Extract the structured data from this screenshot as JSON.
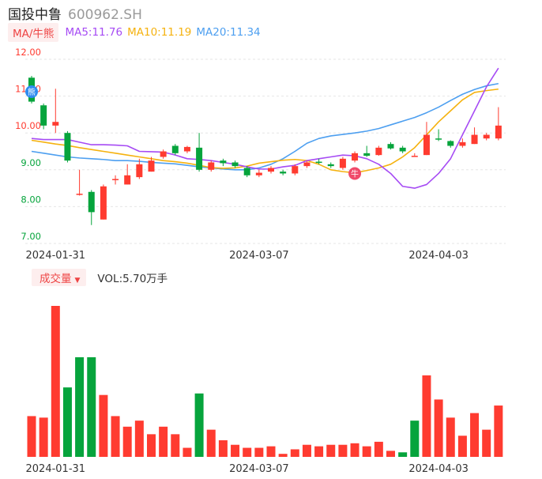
{
  "header": {
    "name": "国投中鲁",
    "code": "600962.SH"
  },
  "legend": {
    "ma_tag": "MA/牛熊",
    "ma5": "MA5:11.76",
    "ma10": "MA10:11.19",
    "ma20": "MA20:11.34"
  },
  "volume_legend": {
    "tag": "成交量",
    "caret": "▼",
    "value": "VOL:5.70万手"
  },
  "colors": {
    "up": "#ff3b30",
    "down": "#06a43c",
    "ma5": "#a64bf4",
    "ma10": "#f5b20f",
    "ma20": "#4d9ff0"
  },
  "markers": [
    {
      "text": "熊",
      "color": "#2f8cf0",
      "index": 0
    },
    {
      "text": "牛",
      "color": "#f04a6a",
      "index": 27
    }
  ],
  "chart_data": [
    {
      "type": "candlestick",
      "ylim": [
        7.0,
        12.0
      ],
      "y_ticks": [
        "7.00",
        "8.00",
        "9.00",
        "10.00",
        "11.00",
        "12.00"
      ],
      "x_tick_labels": [
        {
          "index": 2,
          "label": "2024-01-31"
        },
        {
          "index": 19,
          "label": "2024-03-07"
        },
        {
          "index": 34,
          "label": "2024-04-03"
        }
      ],
      "candles": [
        {
          "open": 11.5,
          "close": 10.85,
          "high": 11.55,
          "low": 10.8
        },
        {
          "open": 10.75,
          "close": 10.2,
          "high": 10.8,
          "low": 10.1
        },
        {
          "open": 10.2,
          "close": 10.3,
          "high": 11.2,
          "low": 10.0
        },
        {
          "open": 10.0,
          "close": 9.25,
          "high": 10.05,
          "low": 9.2
        },
        {
          "open": 8.35,
          "close": 8.35,
          "high": 9.0,
          "low": 8.3
        },
        {
          "open": 8.4,
          "close": 7.85,
          "high": 8.45,
          "low": 7.5
        },
        {
          "open": 7.65,
          "close": 8.55,
          "high": 8.6,
          "low": 7.65
        },
        {
          "open": 8.75,
          "close": 8.75,
          "high": 8.85,
          "low": 8.6
        },
        {
          "open": 8.6,
          "close": 8.85,
          "high": 9.15,
          "low": 8.6
        },
        {
          "open": 8.8,
          "close": 9.15,
          "high": 9.3,
          "low": 8.75
        },
        {
          "open": 8.95,
          "close": 9.25,
          "high": 9.35,
          "low": 8.95
        },
        {
          "open": 9.35,
          "close": 9.5,
          "high": 9.55,
          "low": 9.3
        },
        {
          "open": 9.65,
          "close": 9.45,
          "high": 9.7,
          "low": 9.4
        },
        {
          "open": 9.5,
          "close": 9.62,
          "high": 9.65,
          "low": 9.45
        },
        {
          "open": 9.6,
          "close": 9.0,
          "high": 10.0,
          "low": 8.95
        },
        {
          "open": 9.0,
          "close": 9.2,
          "high": 9.25,
          "low": 8.95
        },
        {
          "open": 9.25,
          "close": 9.18,
          "high": 9.3,
          "low": 9.1
        },
        {
          "open": 9.2,
          "close": 9.1,
          "high": 9.25,
          "low": 9.05
        },
        {
          "open": 9.05,
          "close": 8.85,
          "high": 9.1,
          "low": 8.8
        },
        {
          "open": 8.85,
          "close": 8.92,
          "high": 9.0,
          "low": 8.8
        },
        {
          "open": 8.95,
          "close": 9.05,
          "high": 9.1,
          "low": 8.9
        },
        {
          "open": 8.95,
          "close": 8.9,
          "high": 9.0,
          "low": 8.85
        },
        {
          "open": 8.9,
          "close": 9.1,
          "high": 9.15,
          "low": 8.85
        },
        {
          "open": 9.1,
          "close": 9.2,
          "high": 9.25,
          "low": 9.05
        },
        {
          "open": 9.22,
          "close": 9.2,
          "high": 9.3,
          "low": 9.15
        },
        {
          "open": 9.15,
          "close": 9.1,
          "high": 9.2,
          "low": 9.05
        },
        {
          "open": 9.05,
          "close": 9.3,
          "high": 9.35,
          "low": 9.0
        },
        {
          "open": 9.25,
          "close": 9.45,
          "high": 9.5,
          "low": 9.2
        },
        {
          "open": 9.45,
          "close": 9.38,
          "high": 9.65,
          "low": 9.35
        },
        {
          "open": 9.4,
          "close": 9.6,
          "high": 9.65,
          "low": 9.38
        },
        {
          "open": 9.7,
          "close": 9.58,
          "high": 9.75,
          "low": 9.55
        },
        {
          "open": 9.6,
          "close": 9.5,
          "high": 9.65,
          "low": 9.45
        },
        {
          "open": 9.38,
          "close": 9.38,
          "high": 9.45,
          "low": 9.35
        },
        {
          "open": 9.4,
          "close": 9.95,
          "high": 10.3,
          "low": 9.4
        },
        {
          "open": 9.85,
          "close": 9.82,
          "high": 10.1,
          "low": 9.78
        },
        {
          "open": 9.78,
          "close": 9.65,
          "high": 9.8,
          "low": 9.6
        },
        {
          "open": 9.65,
          "close": 9.75,
          "high": 9.85,
          "low": 9.6
        },
        {
          "open": 9.7,
          "close": 9.95,
          "high": 10.15,
          "low": 9.7
        },
        {
          "open": 9.85,
          "close": 9.95,
          "high": 10.0,
          "low": 9.8
        },
        {
          "open": 9.85,
          "close": 10.2,
          "high": 10.7,
          "low": 9.8
        }
      ],
      "ma5": [
        9.85,
        9.82,
        9.82,
        9.82,
        9.75,
        9.68,
        9.68,
        9.67,
        9.65,
        9.5,
        9.49,
        9.48,
        9.4,
        9.3,
        9.28,
        9.25,
        9.2,
        9.15,
        9.08,
        9.02,
        9.02,
        9.08,
        9.12,
        9.25,
        9.3,
        9.35,
        9.4,
        9.38,
        9.3,
        9.15,
        8.9,
        8.55,
        8.5,
        8.6,
        8.9,
        9.3,
        9.95,
        10.6,
        11.25,
        11.76
      ],
      "ma10": [
        9.8,
        9.75,
        9.7,
        9.66,
        9.6,
        9.55,
        9.5,
        9.45,
        9.4,
        9.35,
        9.3,
        9.25,
        9.22,
        9.18,
        9.12,
        9.06,
        9.04,
        9.05,
        9.1,
        9.18,
        9.22,
        9.26,
        9.28,
        9.25,
        9.15,
        9.0,
        8.95,
        8.92,
        8.98,
        9.05,
        9.15,
        9.35,
        9.6,
        9.95,
        10.3,
        10.6,
        10.9,
        11.1,
        11.15,
        11.19
      ],
      "ma20": [
        9.5,
        9.45,
        9.4,
        9.35,
        9.32,
        9.3,
        9.28,
        9.25,
        9.25,
        9.23,
        9.2,
        9.18,
        9.16,
        9.12,
        9.08,
        9.05,
        9.02,
        9.0,
        9.0,
        9.05,
        9.15,
        9.3,
        9.5,
        9.72,
        9.85,
        9.92,
        9.96,
        10.0,
        10.05,
        10.12,
        10.22,
        10.32,
        10.42,
        10.55,
        10.7,
        10.88,
        11.05,
        11.18,
        11.28,
        11.34
      ]
    },
    {
      "type": "bar",
      "name": "volume",
      "ylim": [
        0,
        1.0
      ],
      "values": [
        0.27,
        0.26,
        1.0,
        0.46,
        0.66,
        0.66,
        0.41,
        0.27,
        0.2,
        0.24,
        0.15,
        0.2,
        0.15,
        0.06,
        0.42,
        0.18,
        0.11,
        0.08,
        0.06,
        0.06,
        0.07,
        0.02,
        0.05,
        0.08,
        0.07,
        0.08,
        0.08,
        0.09,
        0.07,
        0.1,
        0.04,
        0.03,
        0.24,
        0.54,
        0.38,
        0.26,
        0.14,
        0.29,
        0.18,
        0.34
      ],
      "up": [
        true,
        true,
        true,
        false,
        false,
        false,
        true,
        true,
        true,
        true,
        true,
        true,
        true,
        true,
        false,
        true,
        true,
        true,
        true,
        true,
        true,
        true,
        true,
        true,
        true,
        true,
        true,
        true,
        true,
        true,
        true,
        false,
        false,
        true,
        true,
        true,
        true,
        true,
        true,
        true
      ]
    }
  ]
}
